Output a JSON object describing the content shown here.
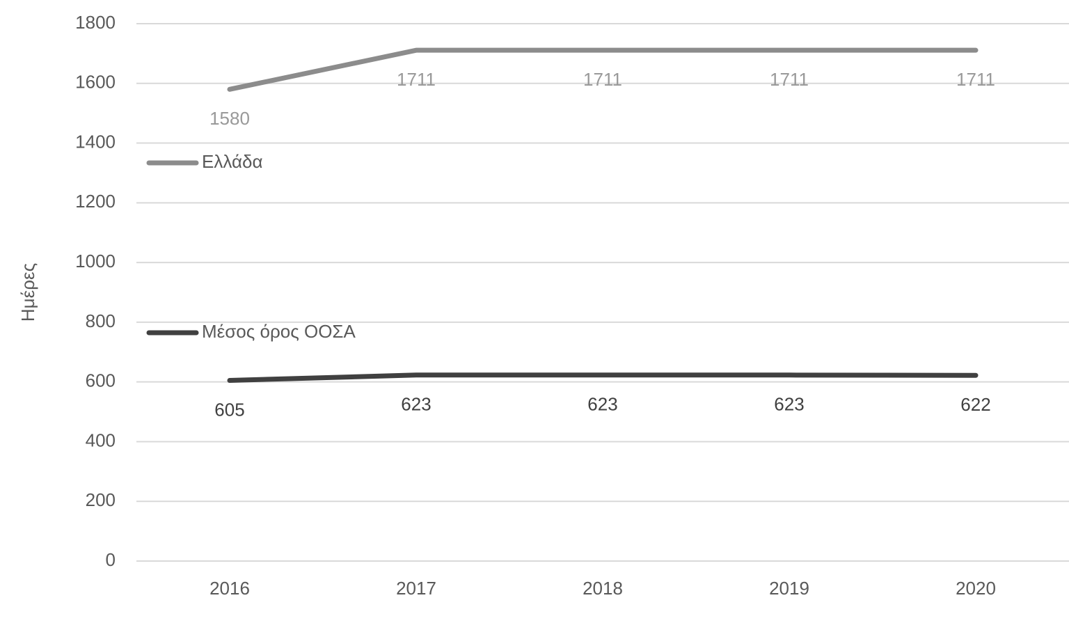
{
  "chart_data": {
    "type": "line",
    "y_label": "Ημέρες",
    "categories": [
      "2016",
      "2017",
      "2018",
      "2019",
      "2020"
    ],
    "series": [
      {
        "name": "Ελλάδα",
        "color": "#8c8c8c",
        "label_color": "#999999",
        "values": [
          1580,
          1711,
          1711,
          1711,
          1711
        ]
      },
      {
        "name": "Μέσος όρος ΟΟΣΑ",
        "color": "#404040",
        "label_color": "#404040",
        "values": [
          605,
          623,
          623,
          623,
          622
        ]
      }
    ],
    "ylim": [
      0,
      1800
    ],
    "yticks": [
      0,
      200,
      400,
      600,
      800,
      1000,
      1200,
      1400,
      1600,
      1800
    ],
    "grid": true
  }
}
